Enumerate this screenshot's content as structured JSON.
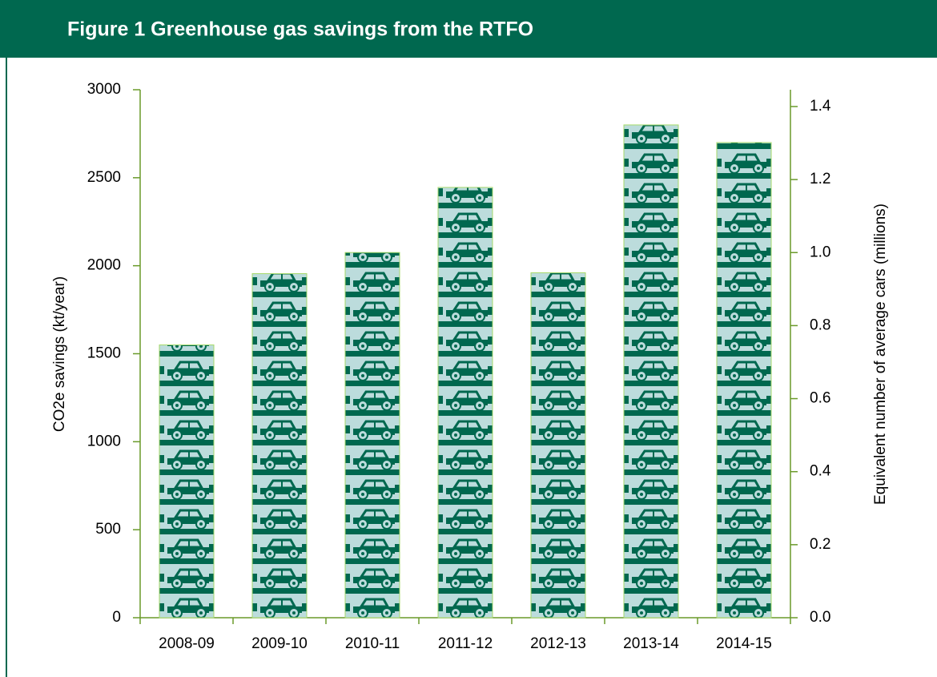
{
  "chart_data": {
    "type": "bar",
    "title": "Figure 1 Greenhouse gas savings from the RTFO",
    "ylabel": "CO2e savings (kt/year)",
    "y2label": "Equivalent number of average cars (millions)",
    "categories": [
      "2008-09",
      "2009-10",
      "2010-11",
      "2011-12",
      "2012-13",
      "2013-14",
      "2014-15"
    ],
    "values": [
      1550,
      1955,
      2075,
      2445,
      1960,
      2800,
      2700
    ],
    "color": "#00684f",
    "fill_background": "#bcdcdc",
    "edge_color": "#a6d96a",
    "ylim": [
      0,
      3000
    ],
    "yticks": [
      0,
      500,
      1000,
      1500,
      2000,
      2500,
      3000
    ],
    "y2lim": [
      0,
      1.446
    ],
    "y2ticks": [
      {
        "value": 0,
        "label": "0.0"
      },
      0.2,
      0.4,
      0.6,
      0.8,
      {
        "value": 1,
        "label": "1.0"
      },
      1.2,
      1.4
    ]
  }
}
